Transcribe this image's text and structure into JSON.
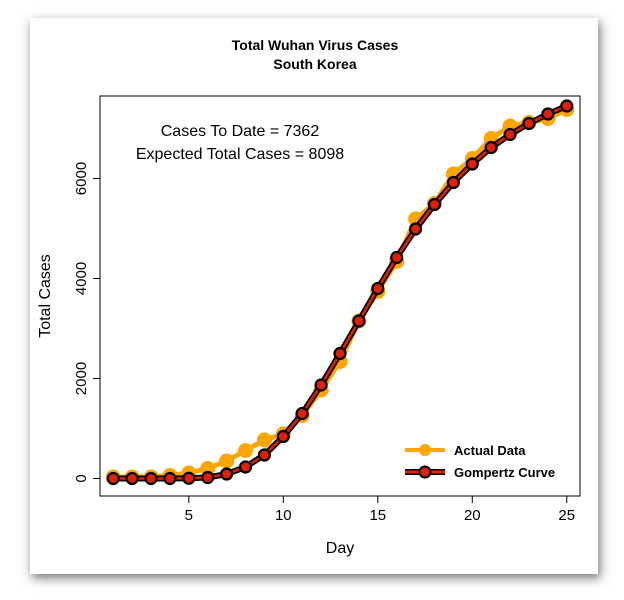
{
  "chart_data": {
    "type": "line",
    "title": "Total Wuhan Virus Cases",
    "subtitle": "South Korea",
    "xlabel": "Day",
    "ylabel": "Total Cases",
    "xlim": [
      0.3,
      25.7
    ],
    "ylim": [
      -350,
      7650
    ],
    "x_ticks": [
      5,
      10,
      15,
      20,
      25
    ],
    "y_ticks": [
      0,
      2000,
      4000,
      6000
    ],
    "annotations": [
      "Cases To Date = 7362",
      "Expected Total Cases = 8098"
    ],
    "legend_position": "bottom-right",
    "grid": false,
    "series": [
      {
        "name": "Actual Data",
        "color": "#FFA500",
        "x": [
          1,
          2,
          3,
          4,
          5,
          6,
          7,
          8,
          9,
          10,
          11,
          12,
          13,
          14,
          15,
          16,
          17,
          18,
          19,
          20,
          21,
          22,
          23,
          24,
          25
        ],
        "values": [
          30,
          30,
          30,
          60,
          110,
          200,
          350,
          560,
          770,
          890,
          1260,
          1770,
          2340,
          3150,
          3740,
          4340,
          5190,
          5500,
          6090,
          6400,
          6800,
          7050,
          7120,
          7200,
          7380
        ]
      },
      {
        "name": "Gompertz Curve",
        "color": "#E02000",
        "x": [
          1,
          2,
          3,
          4,
          5,
          6,
          7,
          8,
          9,
          10,
          11,
          12,
          13,
          14,
          15,
          16,
          17,
          18,
          19,
          20,
          21,
          22,
          23,
          24,
          25
        ],
        "values": [
          0,
          0,
          0,
          0,
          5,
          20,
          90,
          230,
          470,
          840,
          1300,
          1870,
          2500,
          3150,
          3800,
          4420,
          4990,
          5480,
          5920,
          6290,
          6620,
          6880,
          7100,
          7290,
          7450
        ]
      }
    ]
  }
}
